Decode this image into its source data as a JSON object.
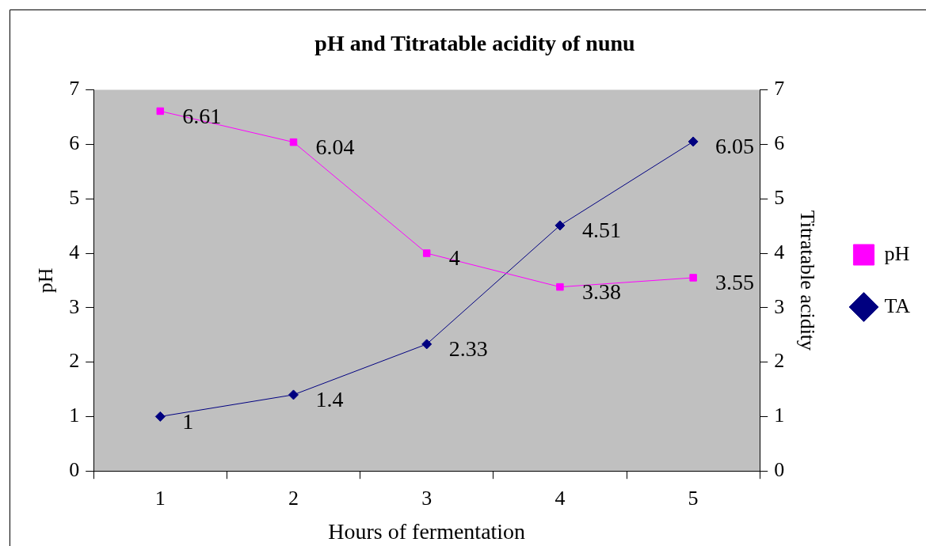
{
  "chart_data": {
    "type": "line",
    "title": "pH and Titratable acidity of nunu",
    "xlabel": "Hours of fermentation",
    "ylabel": "pH",
    "y2label": "Titratable acidity",
    "categories": [
      "1",
      "2",
      "3",
      "4",
      "5"
    ],
    "series": [
      {
        "name": "pH",
        "color": "#ff00ff",
        "marker": "square",
        "values": [
          6.61,
          6.04,
          4,
          3.38,
          3.55
        ]
      },
      {
        "name": "TA",
        "color": "#000080",
        "marker": "diamond",
        "axis": "y2",
        "values": [
          1,
          1.4,
          2.33,
          4.51,
          6.05
        ]
      }
    ],
    "ylim": [
      0,
      7
    ],
    "yticks": [
      0,
      1,
      2,
      3,
      4,
      5,
      6,
      7
    ],
    "y2lim": [
      0,
      7
    ],
    "y2ticks": [
      0,
      1,
      2,
      3,
      4,
      5,
      6,
      7
    ],
    "legend": "right",
    "data_labels": true
  }
}
